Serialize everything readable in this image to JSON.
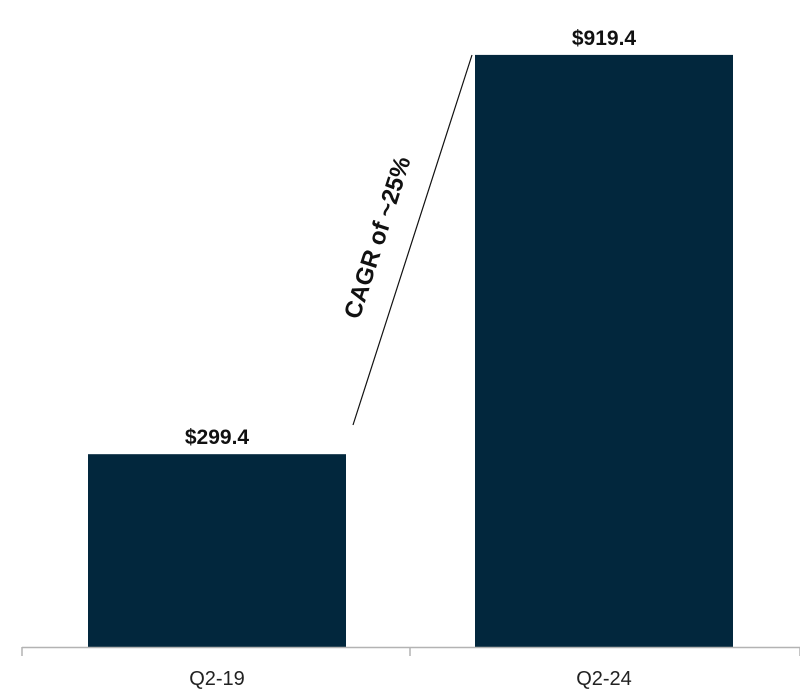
{
  "chart_data": {
    "type": "bar",
    "categories": [
      "Q2-19",
      "Q2-24"
    ],
    "values": [
      299.4,
      919.4
    ],
    "data_labels": [
      "$299.4",
      "$919.4"
    ],
    "ylim": [
      0,
      1000
    ],
    "bar_color": "#02273d",
    "grid": false,
    "annotation": {
      "text": "CAGR of ~25%",
      "from_category": "Q2-19",
      "to_category": "Q2-24"
    }
  }
}
